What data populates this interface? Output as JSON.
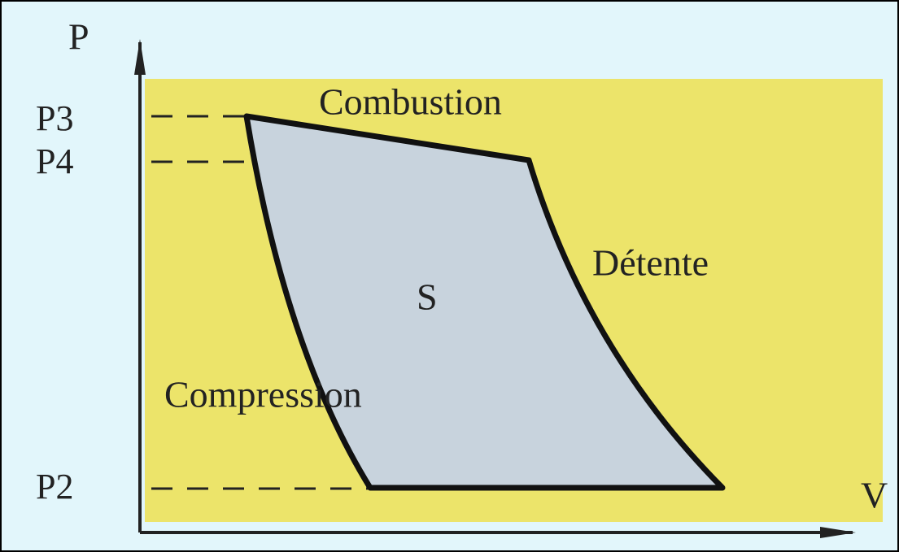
{
  "diagram": {
    "y_axis_label": "P",
    "x_axis_label": "V",
    "levels": [
      "P3",
      "P4",
      "P2"
    ],
    "regions": {
      "top": "Combustion",
      "right": "Détente",
      "left": "Compression",
      "area": "S"
    }
  }
}
